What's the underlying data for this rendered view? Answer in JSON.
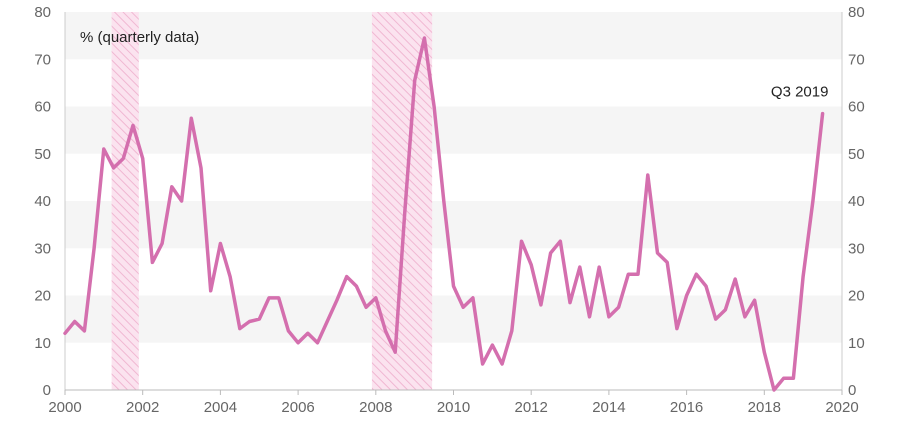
{
  "chart_data": {
    "type": "line",
    "ylabel": "% (quarterly data)",
    "xlim": [
      2000,
      2020
    ],
    "ylim": [
      0,
      80
    ],
    "x_ticks": [
      2000,
      2002,
      2004,
      2006,
      2008,
      2010,
      2012,
      2014,
      2016,
      2018,
      2020
    ],
    "y_ticks": [
      0,
      10,
      20,
      30,
      40,
      50,
      60,
      70,
      80
    ],
    "y_axes": "left and right",
    "grid": "alternating horizontal bands",
    "line_color": "#d46fae",
    "band_color": "#f5f5f5",
    "shaded_periods": [
      {
        "start": 2001.2,
        "end": 2001.9
      },
      {
        "start": 2007.9,
        "end": 2009.45
      }
    ],
    "shade_color": "#f4c6de",
    "annotation": {
      "text": "Q3 2019",
      "x": 2019.6,
      "y": 58.5
    },
    "series": [
      {
        "x": [
          2000.0,
          2000.25,
          2000.5,
          2000.75,
          2001.0,
          2001.25,
          2001.5,
          2001.75,
          2002.0,
          2002.25,
          2002.5,
          2002.75,
          2003.0,
          2003.25,
          2003.5,
          2003.75,
          2004.0,
          2004.25,
          2004.5,
          2004.75,
          2005.0,
          2005.25,
          2005.5,
          2005.75,
          2006.0,
          2006.25,
          2006.5,
          2006.75,
          2007.0,
          2007.25,
          2007.5,
          2007.75,
          2008.0,
          2008.25,
          2008.5,
          2008.75,
          2009.0,
          2009.25,
          2009.5,
          2009.75,
          2010.0,
          2010.25,
          2010.5,
          2010.75,
          2011.0,
          2011.25,
          2011.5,
          2011.75,
          2012.0,
          2012.25,
          2012.5,
          2012.75,
          2013.0,
          2013.25,
          2013.5,
          2013.75,
          2014.0,
          2014.25,
          2014.5,
          2014.75,
          2015.0,
          2015.25,
          2015.5,
          2015.75,
          2016.0,
          2016.25,
          2016.5,
          2016.75,
          2017.0,
          2017.25,
          2017.5,
          2017.75,
          2018.0,
          2018.25,
          2018.5,
          2018.75,
          2019.0,
          2019.25,
          2019.5
        ],
        "values": [
          12,
          14.5,
          12.5,
          30,
          51,
          47,
          49,
          56,
          49,
          27,
          31,
          43,
          40,
          57.5,
          47,
          21,
          31,
          24,
          13,
          14.5,
          15,
          19.5,
          19.5,
          12.5,
          10,
          12,
          10,
          14.5,
          19,
          24,
          22,
          17.5,
          19.5,
          12.5,
          8,
          38,
          65.5,
          74.5,
          60,
          40,
          22,
          17.5,
          19.5,
          5.5,
          9.5,
          5.5,
          12.5,
          31.5,
          26.5,
          18,
          29,
          31.5,
          18.5,
          26,
          15.5,
          26,
          15.5,
          17.5,
          24.5,
          24.5,
          45.5,
          29,
          27,
          13,
          20,
          24.5,
          22,
          15,
          17,
          23.5,
          15.5,
          19,
          8,
          0,
          2.5,
          2.5,
          24,
          40,
          58.5
        ]
      }
    ]
  }
}
